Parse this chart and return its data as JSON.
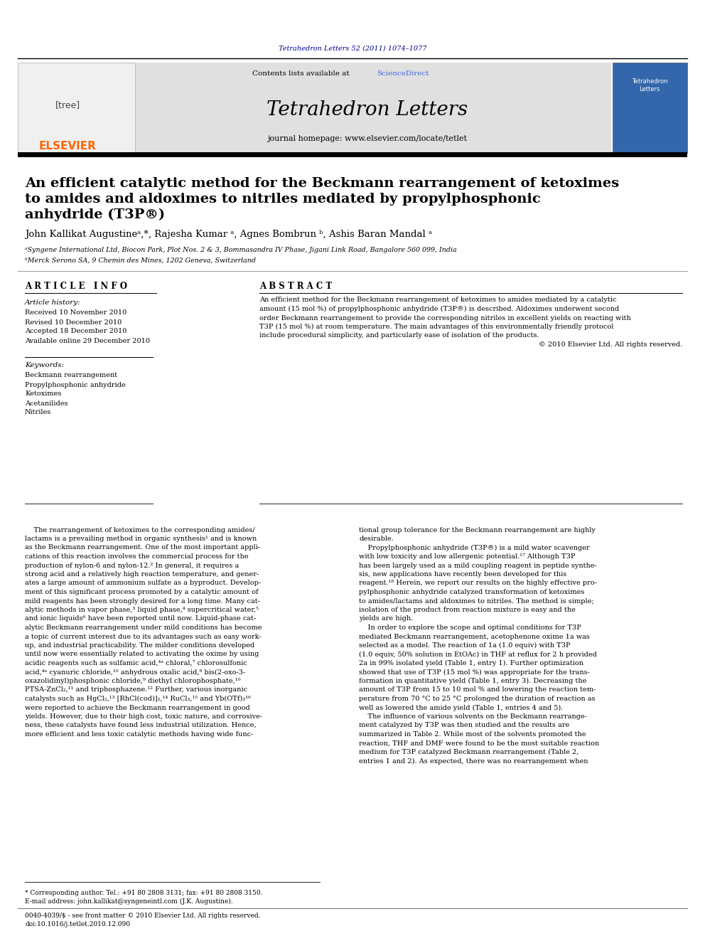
{
  "page_width": 9.92,
  "page_height": 13.23,
  "dpi": 100,
  "bg_color": "#ffffff",
  "journal_ref": "Tetrahedron Letters 52 (2011) 1074–1077",
  "journal_ref_color": "#00008B",
  "header_bg": "#e0e0e0",
  "contents_text": "Contents lists available at ",
  "sciencedirect_text": "ScienceDirect",
  "sciencedirect_color": "#4169E1",
  "journal_name": "Tetrahedron Letters",
  "journal_homepage": "journal homepage: www.elsevier.com/locate/tetlet",
  "elsevier_color": "#FF6600",
  "article_title_line1": "An efficient catalytic method for the Beckmann rearrangement of ketoximes",
  "article_title_line2": "to amides and aldoximes to nitriles mediated by propylphosphonic",
  "article_title_line3": "anhydride (T3P®)",
  "authors": "John Kallikat Augustineᵃ,*, Rajesha Kumar ᵃ, Agnes Bombrun ᵇ, Ashis Baran Mandal ᵃ",
  "affiliation_a": "ᵃSyngene International Ltd, Biocon Park, Plot Nos. 2 & 3, Bommasandra IV Phase, Jigani Link Road, Bangalore 560 099, India",
  "affiliation_b": "ᵇMerck Serono SA, 9 Chemin des Mines, 1202 Geneva, Switzerland",
  "article_info_title": "A R T I C L E   I N F O",
  "abstract_title": "A B S T R A C T",
  "article_history_title": "Article history:",
  "received": "Received 10 November 2010",
  "revised": "Revised 10 December 2010",
  "accepted": "Accepted 18 December 2010",
  "available": "Available online 29 December 2010",
  "keywords_title": "Keywords:",
  "keyword1": "Beckmann rearrangement",
  "keyword2": "Propylphosphonic anhydride",
  "keyword3": "Ketoximes",
  "keyword4": "Acetanilides",
  "keyword5": "Nitriles",
  "abstract_lines": [
    "An efficient method for the Beckmann rearrangement of ketoximes to amides mediated by a catalytic",
    "amount (15 mol %) of propylphosphonic anhydride (T3P®) is described. Aldoximes underwent second",
    "order Beckmann rearrangement to provide the corresponding nitriles in excellent yields on reacting with",
    "T3P (15 mol %) at room temperature. The main advantages of this environmentally friendly protocol",
    "include procedural simplicity, and particularly ease of isolation of the products.",
    "© 2010 Elsevier Ltd. All rights reserved."
  ],
  "col1_lines": [
    "    The rearrangement of ketoximes to the corresponding amides/",
    "lactams is a prevailing method in organic synthesis¹ and is known",
    "as the Beckmann rearrangement. One of the most important appli-",
    "cations of this reaction involves the commercial process for the",
    "production of nylon-6 and nylon-12.² In general, it requires a",
    "strong acid and a relatively high reaction temperature, and gener-",
    "ates a large amount of ammonium sulfate as a byproduct. Develop-",
    "ment of this significant process promoted by a catalytic amount of",
    "mild reagents has been strongly desired for a long time. Many cat-",
    "alytic methods in vapor phase,³ liquid phase,⁴ supercritical water,⁵",
    "and ionic liquids⁶ have been reported until now. Liquid-phase cat-",
    "alytic Beckmann rearrangement under mild conditions has become",
    "a topic of current interest due to its advantages such as easy work-",
    "up, and industrial practicability. The milder conditions developed",
    "until now were essentially related to activating the oxime by using",
    "acidic reagents such as sulfamic acid,⁴ᵃ chloral,⁷ chlorosulfonic",
    "acid,⁴ᵃ cyanuric chloride,¹⁰ anhydrous oxalic acid,⁸ bis(2-oxo-3-",
    "oxazolidinyl)phosphonic chloride,⁹ diethyl chlorophosphate,¹⁰",
    "PTSA-ZnCl₂,¹¹ and triphosphazene.¹² Further, various inorganic",
    "catalysts such as HgCl₂,¹³ [RhCl(cod)]₂,¹⁴ RuCl₃,¹⁵ and Yb(OTf)₃¹⁶",
    "were reported to achieve the Beckmann rearrangement in good",
    "yields. However, due to their high cost, toxic nature, and corrosive-",
    "ness, these catalysts have found less industrial utilization. Hence,",
    "more efficient and less toxic catalytic methods having wide func-"
  ],
  "col2_lines": [
    "tional group tolerance for the Beckmann rearrangement are highly",
    "desirable.",
    "    Propylphosphonic anhydride (T3P®) is a mild water scavenger",
    "with low toxicity and low allergenic potential.¹⁷ Although T3P",
    "has been largely used as a mild coupling reagent in peptide synthe-",
    "sis, new applications have recently been developed for this",
    "reagent.¹⁸ Herein, we report our results on the highly effective pro-",
    "pylphosphonic anhydride catalyzed transformation of ketoximes",
    "to amides/lactams and aldoximes to nitriles. The method is simple;",
    "isolation of the product from reaction mixture is easy and the",
    "yields are high.",
    "    In order to explore the scope and optimal conditions for T3P",
    "mediated Beckmann rearrangement, acetophenone oxime 1a was",
    "selected as a model. The reaction of 1a (1.0 equiv) with T3P",
    "(1.0 equiv, 50% solution in EtOAc) in THF at reflux for 2 h provided",
    "2a in 99% isolated yield (Table 1, entry 1). Further optimization",
    "showed that use of T3P (15 mol %) was appropriate for the trans-",
    "formation in quantitative yield (Table 1, entry 3). Decreasing the",
    "amount of T3P from 15 to 10 mol % and lowering the reaction tem-",
    "perature from 70 °C to 25 °C prolonged the duration of reaction as",
    "well as lowered the amide yield (Table 1, entries 4 and 5).",
    "    The influence of various solvents on the Beckmann rearrange-",
    "ment catalyzed by T3P was then studied and the results are",
    "summarized in Table 2. While most of the solvents promoted the",
    "reaction, THF and DMF were found to be the most suitable reaction",
    "medium for T3P catalyzed Beckmann rearrangement (Table 2,",
    "entries 1 and 2). As expected, there was no rearrangement when"
  ],
  "footnote1": "* Corresponding author. Tel.: +91 80 2808 3131; fax: +91 80 2808 3150.",
  "footnote2": "E-mail address: john.kallikat@syngeneintl.com (J.K. Augustine).",
  "footnote3": "0040-4039/$ - see front matter © 2010 Elsevier Ltd. All rights reserved.",
  "footnote4": "doi:10.1016/j.tetlet.2010.12.090"
}
